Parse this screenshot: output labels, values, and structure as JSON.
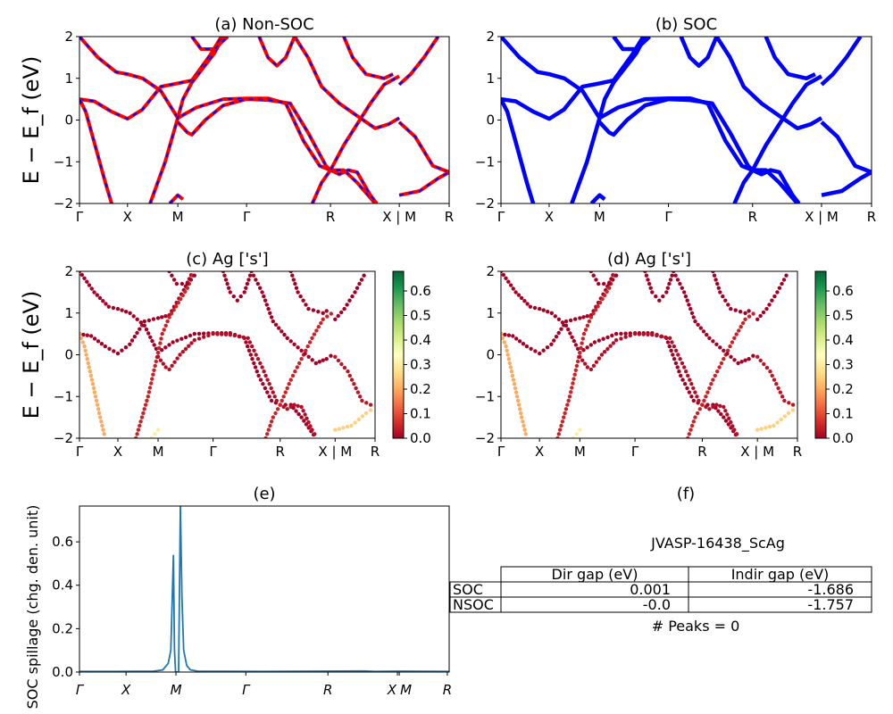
{
  "chart_data": [
    {
      "type": "line",
      "panel": "a",
      "title": "(a) Non-SOC",
      "ylabel": "E − E_f (eV)",
      "ylim": [
        -2,
        2
      ],
      "yticks": [
        "−2",
        "−1",
        "0",
        "1",
        "2"
      ],
      "xticks": [
        "Γ",
        "X",
        "M",
        "Γ",
        "R",
        "X | M",
        "R"
      ],
      "xtick_positions": [
        0,
        0.13,
        0.266,
        0.452,
        0.679,
        0.865,
        1.0
      ],
      "style": "red solid with blue dashed overlay",
      "colors": [
        "#ff0000",
        "#0000ff"
      ]
    },
    {
      "type": "line",
      "panel": "b",
      "title": "(b) SOC",
      "ylim": [
        -2,
        2
      ],
      "yticks": [
        "−2",
        "−1",
        "0",
        "1",
        "2"
      ],
      "xticks": [
        "Γ",
        "X",
        "M",
        "Γ",
        "R",
        "X | M",
        "R"
      ],
      "xtick_positions": [
        0,
        0.13,
        0.266,
        0.452,
        0.679,
        0.865,
        1.0
      ],
      "colors": [
        "#0000ff"
      ]
    },
    {
      "type": "scatter",
      "panel": "c",
      "title": "(c)  Ag ['s']",
      "ylabel": "E − E_f (eV)",
      "ylim": [
        -2,
        2
      ],
      "yticks": [
        "−2",
        "−1",
        "0",
        "1",
        "2"
      ],
      "xticks": [
        "Γ",
        "X",
        "M",
        "Γ",
        "R",
        "X | M",
        "R"
      ],
      "colorbar": {
        "colormap": "RdYlGn",
        "range": [
          0,
          0.68
        ],
        "ticks": [
          "0.0",
          "0.1",
          "0.2",
          "0.3",
          "0.4",
          "0.5",
          "0.6"
        ]
      }
    },
    {
      "type": "scatter",
      "panel": "d",
      "title": "(d) Ag ['s']",
      "ylim": [
        -2,
        2
      ],
      "yticks": [
        "−2",
        "−1",
        "0",
        "1",
        "2"
      ],
      "xticks": [
        "Γ",
        "X",
        "M",
        "Γ",
        "R",
        "X | M",
        "R"
      ],
      "colorbar": {
        "colormap": "RdYlGn",
        "range": [
          0,
          0.68
        ],
        "ticks": [
          "0.0",
          "0.1",
          "0.2",
          "0.3",
          "0.4",
          "0.5",
          "0.6"
        ]
      }
    },
    {
      "type": "line",
      "panel": "e",
      "title": "(e)",
      "ylabel": "SOC spillage (chg. den. unit)",
      "ylim": [
        0,
        0.765
      ],
      "yticks": [
        "0.0",
        "0.2",
        "0.4",
        "0.6"
      ],
      "xticks": [
        "Γ",
        "X",
        "M",
        "Γ",
        "R",
        "X",
        "M",
        "R"
      ],
      "xtick_positions": [
        0,
        0.126,
        0.261,
        0.45,
        0.672,
        0.86,
        0.865,
        0.995
      ],
      "color": "#1f77b4",
      "x": [
        0,
        0.1,
        0.2,
        0.225,
        0.24,
        0.247,
        0.254,
        0.257,
        0.26,
        0.262,
        0.266,
        0.268,
        0.27,
        0.273,
        0.277,
        0.282,
        0.29,
        0.3,
        0.32,
        0.5,
        0.77,
        0.8,
        0.86,
        1.0
      ],
      "y": [
        0.003,
        0.003,
        0.004,
        0.01,
        0.04,
        0.1,
        0.54,
        0.1,
        0.0,
        0.0,
        0.0,
        0.0,
        0.3,
        0.77,
        0.35,
        0.1,
        0.03,
        0.01,
        0.004,
        0.003,
        0.005,
        0.003,
        0.004,
        0.003
      ]
    },
    {
      "type": "table",
      "panel": "f",
      "title": "(f)",
      "caption": "JVASP-16438_ScAg",
      "columns": [
        "Dir gap (eV)",
        "Indir gap (eV)"
      ],
      "rows": [
        {
          "label": "SOC",
          "values": [
            "0.001",
            "-1.686"
          ]
        },
        {
          "label": "NSOC",
          "values": [
            "-0.0",
            "-1.757"
          ]
        }
      ],
      "footer": "# Peaks = 0"
    }
  ],
  "bands": [
    {
      "w": 0.0,
      "pts": [
        [
          0,
          0.5
        ],
        [
          0.04,
          0.45
        ],
        [
          0.087,
          0.2
        ],
        [
          0.13,
          0.03
        ],
        [
          0.17,
          0.25
        ],
        [
          0.22,
          0.8
        ],
        [
          0.266,
          0.88
        ],
        [
          0.304,
          0.95
        ],
        [
          0.353,
          1.55
        ],
        [
          0.384,
          2
        ]
      ]
    },
    {
      "w": 0.0,
      "pts": [
        [
          0,
          2
        ],
        [
          0.05,
          1.5
        ],
        [
          0.099,
          1.15
        ],
        [
          0.13,
          1.1
        ],
        [
          0.171,
          1.0
        ],
        [
          0.22,
          0.7
        ],
        [
          0.266,
          0.05
        ],
        [
          0.316,
          0.3
        ],
        [
          0.389,
          0.5
        ],
        [
          0.452,
          0.52
        ],
        [
          0.51,
          0.52
        ],
        [
          0.558,
          0.4
        ],
        [
          0.606,
          -0.5
        ],
        [
          0.65,
          -1.1
        ],
        [
          0.679,
          -1.2
        ],
        [
          0.715,
          -1.2
        ],
        [
          0.751,
          -1.5
        ],
        [
          0.8,
          -2
        ]
      ]
    },
    {
      "w": 0.2,
      "pts": [
        [
          0,
          0.5
        ],
        [
          0.017,
          0.2
        ],
        [
          0.039,
          -0.5
        ],
        [
          0.07,
          -1.5
        ],
        [
          0.087,
          -2
        ]
      ]
    },
    {
      "w": 0.05,
      "pts": [
        [
          0.191,
          -2
        ],
        [
          0.232,
          -1
        ],
        [
          0.266,
          0.05
        ],
        [
          0.28,
          0.5
        ],
        [
          0.304,
          0.9
        ],
        [
          0.365,
          1.6
        ],
        [
          0.389,
          2
        ]
      ]
    },
    {
      "w": 0.02,
      "pts": [
        [
          0.266,
          -0.05
        ],
        [
          0.292,
          -0.3
        ],
        [
          0.304,
          -0.35
        ],
        [
          0.34,
          0
        ],
        [
          0.389,
          0.35
        ],
        [
          0.452,
          0.5
        ],
        [
          0.51,
          0.48
        ],
        [
          0.57,
          0.4
        ],
        [
          0.618,
          -0.3
        ],
        [
          0.667,
          -1.1
        ],
        [
          0.679,
          -1.2
        ],
        [
          0.703,
          -1.3
        ],
        [
          0.727,
          -1.2
        ],
        [
          0.751,
          -1.25
        ],
        [
          0.787,
          -1.8
        ],
        [
          0.804,
          -2
        ]
      ]
    },
    {
      "w": 0.05,
      "pts": [
        [
          0.63,
          -2
        ],
        [
          0.655,
          -1.5
        ],
        [
          0.679,
          -1.2
        ],
        [
          0.715,
          -0.6
        ],
        [
          0.751,
          -0.1
        ],
        [
          0.787,
          0.4
        ],
        [
          0.824,
          0.85
        ],
        [
          0.865,
          1.05
        ]
      ]
    },
    {
      "w": 0.0,
      "pts": [
        [
          0.582,
          2
        ],
        [
          0.618,
          1.5
        ],
        [
          0.655,
          0.8
        ],
        [
          0.703,
          0.4
        ],
        [
          0.751,
          0.1
        ],
        [
          0.8,
          -0.2
        ],
        [
          0.836,
          -0.1
        ],
        [
          0.865,
          0.05
        ]
      ]
    },
    {
      "w": 0.0,
      "pts": [
        [
          0.865,
          0.85
        ],
        [
          0.896,
          1.1
        ],
        [
          0.932,
          1.5
        ],
        [
          0.97,
          2
        ]
      ]
    },
    {
      "w": 0.03,
      "pts": [
        [
          0.865,
          -0.05
        ],
        [
          0.908,
          -0.4
        ],
        [
          0.956,
          -1.1
        ],
        [
          1.0,
          -1.25
        ]
      ]
    },
    {
      "w": 0.25,
      "pts": [
        [
          0.865,
          -1.8
        ],
        [
          0.92,
          -1.7
        ],
        [
          0.97,
          -1.4
        ],
        [
          1.0,
          -1.25
        ]
      ]
    },
    {
      "w": 0.3,
      "pts": [
        [
          0.244,
          -2
        ],
        [
          0.266,
          -1.8
        ],
        [
          0.28,
          -1.9
        ]
      ]
    },
    {
      "w": 0.0,
      "pts": [
        [
          0.304,
          2
        ],
        [
          0.329,
          1.7
        ],
        [
          0.365,
          1.7
        ],
        [
          0.389,
          1.9
        ],
        [
          0.401,
          2
        ]
      ]
    },
    {
      "w": 0.0,
      "pts": [
        [
          0.486,
          2
        ],
        [
          0.51,
          1.5
        ],
        [
          0.534,
          1.3
        ],
        [
          0.558,
          1.5
        ],
        [
          0.582,
          2
        ]
      ]
    },
    {
      "w": 0.0,
      "pts": [
        [
          0.715,
          2
        ],
        [
          0.739,
          1.5
        ],
        [
          0.775,
          1.1
        ],
        [
          0.824,
          1.0
        ],
        [
          0.848,
          1.1
        ]
      ]
    }
  ]
}
